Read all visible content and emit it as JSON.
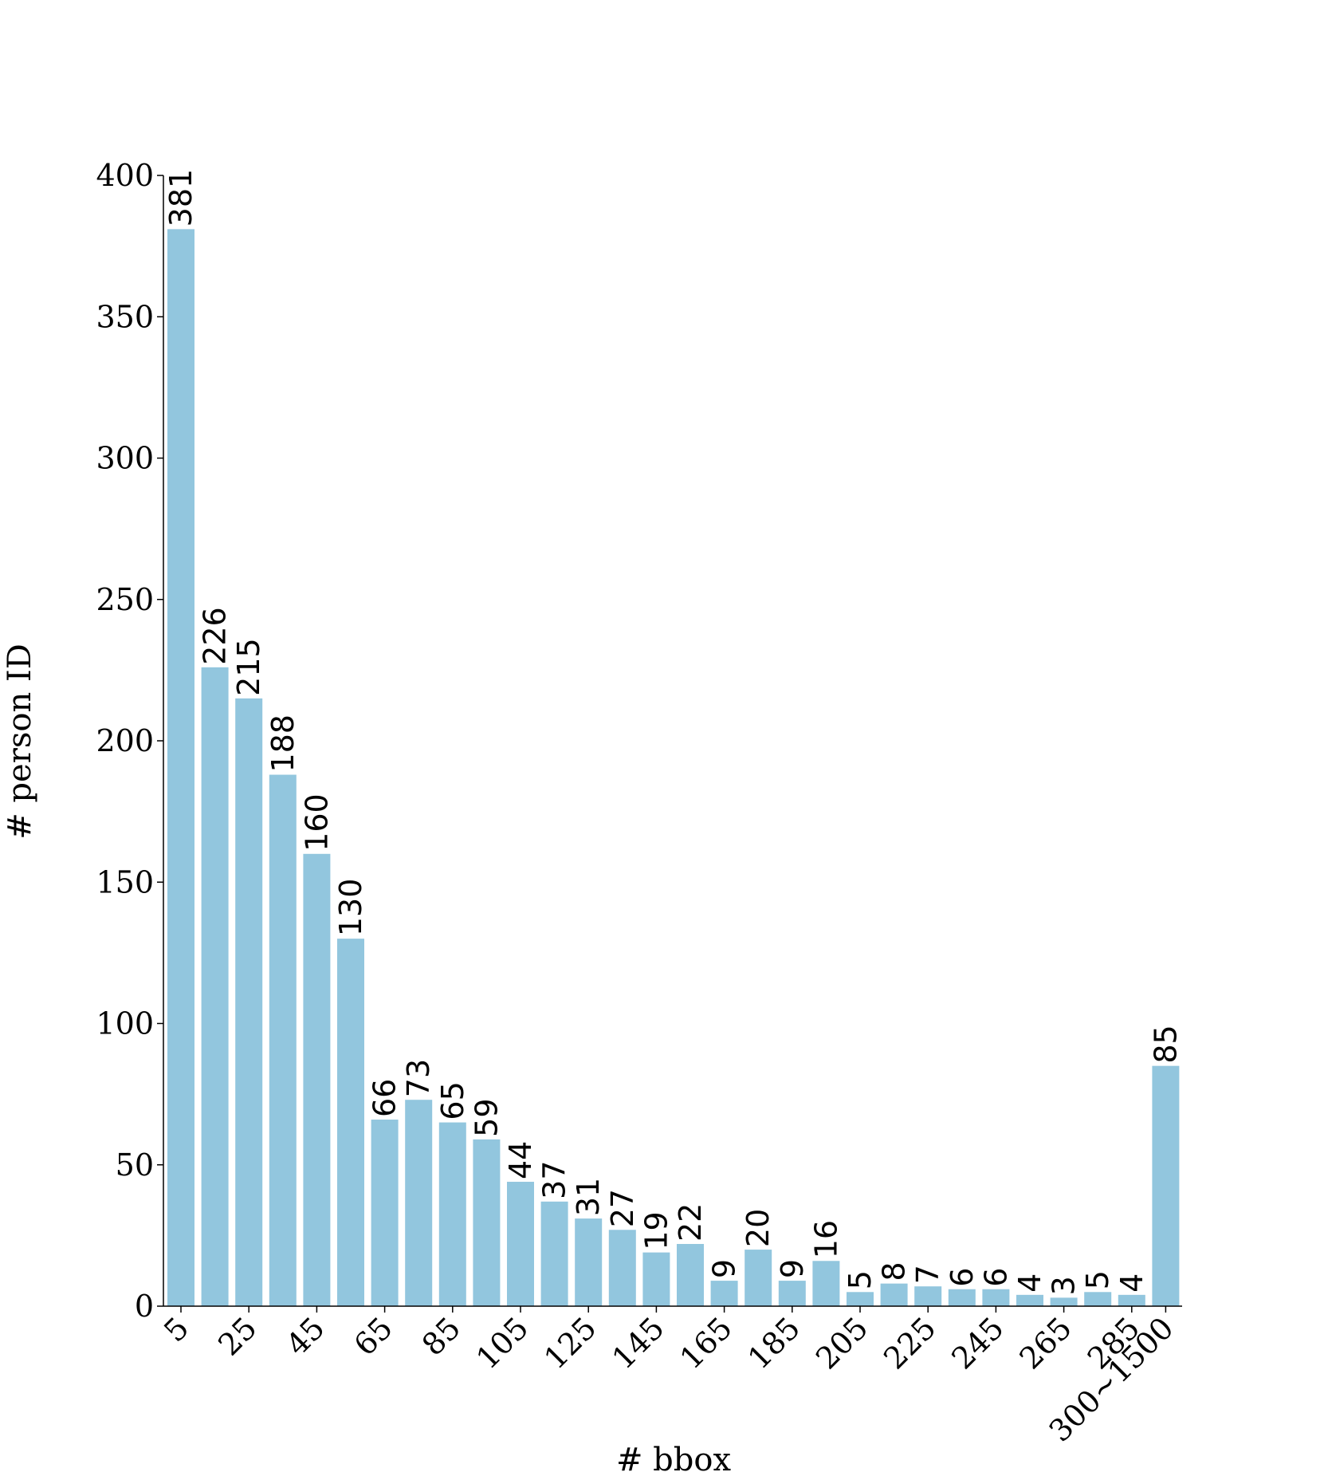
{
  "chart_data": {
    "type": "bar",
    "title": "",
    "xlabel": "# bbox",
    "ylabel": "# person ID",
    "ylim": [
      0,
      400
    ],
    "yticks": [
      0,
      50,
      100,
      150,
      200,
      250,
      300,
      350,
      400
    ],
    "x_tick_labels": [
      "5",
      "25",
      "45",
      "65",
      "85",
      "105",
      "125",
      "145",
      "165",
      "185",
      "205",
      "225",
      "245",
      "265",
      "285",
      "300~1500"
    ],
    "bars": [
      {
        "value": 381
      },
      {
        "value": 226
      },
      {
        "value": 215
      },
      {
        "value": 188
      },
      {
        "value": 160
      },
      {
        "value": 130
      },
      {
        "value": 66
      },
      {
        "value": 73
      },
      {
        "value": 65
      },
      {
        "value": 59
      },
      {
        "value": 44
      },
      {
        "value": 37
      },
      {
        "value": 31
      },
      {
        "value": 27
      },
      {
        "value": 19
      },
      {
        "value": 22
      },
      {
        "value": 9
      },
      {
        "value": 20
      },
      {
        "value": 9
      },
      {
        "value": 16
      },
      {
        "value": 5
      },
      {
        "value": 8
      },
      {
        "value": 7
      },
      {
        "value": 6
      },
      {
        "value": 6
      },
      {
        "value": 4
      },
      {
        "value": 3
      },
      {
        "value": 5
      },
      {
        "value": 4
      },
      {
        "value": 85
      }
    ],
    "x_tick_bar_index": [
      0,
      2,
      4,
      6,
      8,
      10,
      12,
      14,
      16,
      18,
      20,
      22,
      24,
      26,
      28,
      29
    ],
    "bar_color": "#92c6de",
    "grid": false,
    "legend": "none"
  }
}
